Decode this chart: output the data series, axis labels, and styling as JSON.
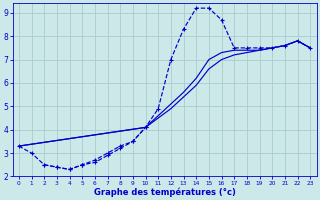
{
  "xlabel": "Graphe des températures (°c)",
  "xlim": [
    -0.5,
    23.5
  ],
  "ylim": [
    2,
    9.4
  ],
  "xticks": [
    0,
    1,
    2,
    3,
    4,
    5,
    6,
    7,
    8,
    9,
    10,
    11,
    12,
    13,
    14,
    15,
    16,
    17,
    18,
    19,
    20,
    21,
    22,
    23
  ],
  "yticks": [
    2,
    3,
    4,
    5,
    6,
    7,
    8,
    9
  ],
  "bg_color": "#cce8e8",
  "grid_color": "#aacccc",
  "line_color": "#0000cc",
  "curve1_x": [
    0,
    1,
    2,
    3,
    4,
    5,
    6,
    7,
    8,
    9,
    10,
    11,
    12,
    13,
    14,
    15,
    16,
    17,
    18,
    19,
    20,
    21,
    22,
    23
  ],
  "curve1_y": [
    3.3,
    3.0,
    2.5,
    2.4,
    2.3,
    2.5,
    2.6,
    2.9,
    3.2,
    3.5,
    4.1,
    4.9,
    7.0,
    8.3,
    9.2,
    9.2,
    8.7,
    7.5,
    7.5,
    7.5,
    7.5,
    7.6,
    7.8,
    7.5
  ],
  "curve2_x": [
    0,
    10,
    11,
    12,
    13,
    14,
    15,
    16,
    17,
    18,
    19,
    20,
    21,
    22,
    23
  ],
  "curve2_y": [
    3.3,
    4.1,
    4.6,
    5.1,
    5.6,
    6.2,
    7.0,
    7.3,
    7.4,
    7.4,
    7.4,
    7.5,
    7.6,
    7.8,
    7.5
  ],
  "curve3_x": [
    0,
    10,
    11,
    12,
    13,
    14,
    15,
    16,
    17,
    18,
    19,
    20,
    21,
    22,
    23
  ],
  "curve3_y": [
    3.3,
    4.1,
    4.5,
    4.9,
    5.4,
    5.9,
    6.6,
    7.0,
    7.2,
    7.3,
    7.4,
    7.5,
    7.6,
    7.8,
    7.5
  ],
  "curve4_x": [
    2,
    3,
    4,
    5,
    6,
    7,
    8,
    9,
    10
  ],
  "curve4_y": [
    2.5,
    2.4,
    2.3,
    2.5,
    2.7,
    3.0,
    3.3,
    3.5,
    4.1
  ]
}
